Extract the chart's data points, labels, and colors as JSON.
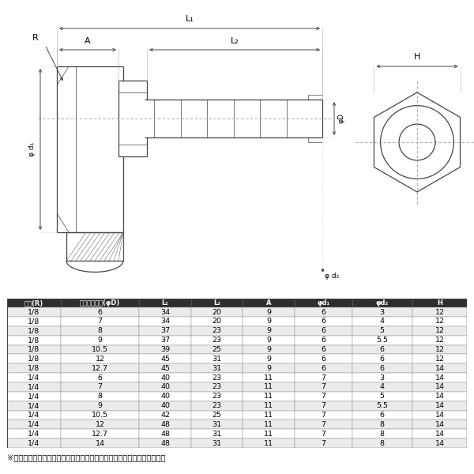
{
  "bg_color": "#ffffff",
  "table_header": [
    "ネジ(R)",
    "タケノコ外径(φD)",
    "L₁",
    "L₂",
    "A",
    "φd₁",
    "φd₂",
    "H"
  ],
  "table_header_bg": "#2e2e2e",
  "table_header_color": "#ffffff",
  "table_rows": [
    [
      "1/8",
      "6",
      "34",
      "20",
      "9",
      "6",
      "3",
      "12"
    ],
    [
      "1/8",
      "7",
      "34",
      "20",
      "9",
      "6",
      "4",
      "12"
    ],
    [
      "1/8",
      "8",
      "37",
      "23",
      "9",
      "6",
      "5",
      "12"
    ],
    [
      "1/8",
      "9",
      "37",
      "23",
      "9",
      "6",
      "5.5",
      "12"
    ],
    [
      "1/8",
      "10.5",
      "39",
      "25",
      "9",
      "6",
      "6",
      "12"
    ],
    [
      "1/8",
      "12",
      "45",
      "31",
      "9",
      "6",
      "6",
      "12"
    ],
    [
      "1/8",
      "12.7",
      "45",
      "31",
      "9",
      "6",
      "6",
      "14"
    ],
    [
      "1/4",
      "6",
      "40",
      "23",
      "11",
      "7",
      "3",
      "14"
    ],
    [
      "1/4",
      "7",
      "40",
      "23",
      "11",
      "7",
      "4",
      "14"
    ],
    [
      "1/4",
      "8",
      "40",
      "23",
      "11",
      "7",
      "5",
      "14"
    ],
    [
      "1/4",
      "9",
      "40",
      "23",
      "11",
      "7",
      "5.5",
      "14"
    ],
    [
      "1/4",
      "10.5",
      "42",
      "25",
      "11",
      "7",
      "6",
      "14"
    ],
    [
      "1/4",
      "12",
      "48",
      "31",
      "11",
      "7",
      "8",
      "14"
    ],
    [
      "1/4",
      "12.7",
      "48",
      "31",
      "11",
      "7",
      "8",
      "14"
    ],
    [
      "1/4",
      "14",
      "48",
      "31",
      "11",
      "7",
      "8",
      "14"
    ]
  ],
  "row_bg_even": "#ebebeb",
  "row_bg_odd": "#ffffff",
  "footnote": "※輸入品により製品誤差がありますので寸法表は参考程度としてください",
  "lc": "#444444",
  "dc": "#888888"
}
